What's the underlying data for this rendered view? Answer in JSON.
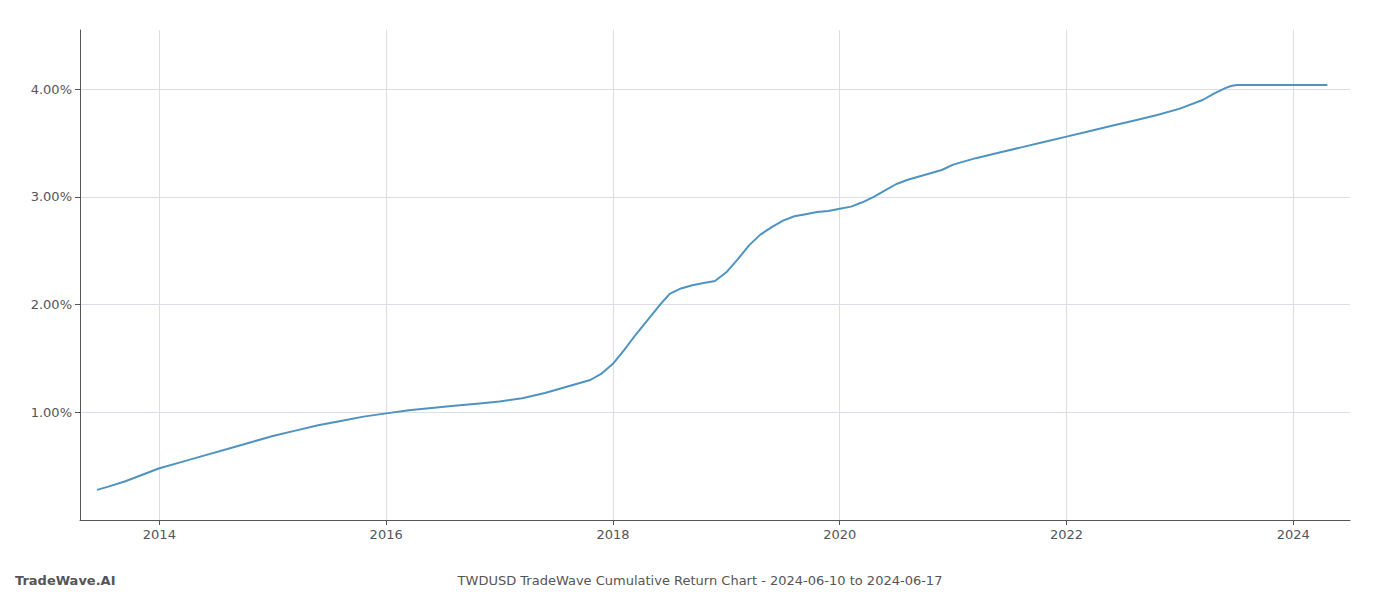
{
  "chart_data": {
    "type": "line",
    "title": "TWDUSD TradeWave Cumulative Return Chart - 2024-06-10 to 2024-06-17",
    "annotations": [
      "TradeWave.AI"
    ],
    "color": "#4f93c0",
    "x": [
      2013.45,
      2013.55,
      2013.7,
      2013.85,
      2014.0,
      2014.2,
      2014.4,
      2014.6,
      2014.8,
      2015.0,
      2015.2,
      2015.4,
      2015.6,
      2015.8,
      2016.0,
      2016.2,
      2016.4,
      2016.6,
      2016.8,
      2017.0,
      2017.2,
      2017.4,
      2017.5,
      2017.6,
      2017.7,
      2017.8,
      2017.9,
      2018.0,
      2018.1,
      2018.2,
      2018.3,
      2018.4,
      2018.5,
      2018.6,
      2018.7,
      2018.8,
      2018.9,
      2019.0,
      2019.1,
      2019.2,
      2019.3,
      2019.4,
      2019.5,
      2019.6,
      2019.7,
      2019.8,
      2019.9,
      2020.0,
      2020.1,
      2020.2,
      2020.3,
      2020.4,
      2020.5,
      2020.6,
      2020.7,
      2020.8,
      2020.9,
      2021.0,
      2021.2,
      2021.4,
      2021.6,
      2021.8,
      2022.0,
      2022.2,
      2022.4,
      2022.6,
      2022.8,
      2023.0,
      2023.2,
      2023.3,
      2023.4,
      2023.45,
      2023.5,
      2023.6,
      2023.7,
      2023.8,
      2023.9,
      2024.0,
      2024.1,
      2024.2,
      2024.3
    ],
    "values": [
      0.0028,
      0.0031,
      0.0036,
      0.0042,
      0.0048,
      0.0054,
      0.006,
      0.0066,
      0.0072,
      0.0078,
      0.0083,
      0.0088,
      0.0092,
      0.0096,
      0.0099,
      0.0102,
      0.0104,
      0.0106,
      0.0108,
      0.011,
      0.0113,
      0.0118,
      0.0121,
      0.0124,
      0.0127,
      0.013,
      0.0136,
      0.0145,
      0.0158,
      0.0172,
      0.0185,
      0.0198,
      0.021,
      0.0215,
      0.0218,
      0.022,
      0.0222,
      0.023,
      0.0242,
      0.0255,
      0.0265,
      0.0272,
      0.0278,
      0.0282,
      0.0284,
      0.0286,
      0.0287,
      0.0289,
      0.0291,
      0.0295,
      0.03,
      0.0306,
      0.0312,
      0.0316,
      0.0319,
      0.0322,
      0.0325,
      0.033,
      0.0336,
      0.0341,
      0.0346,
      0.0351,
      0.0356,
      0.0361,
      0.0366,
      0.0371,
      0.0376,
      0.0382,
      0.039,
      0.0396,
      0.0401,
      0.0403,
      0.0404,
      0.0404,
      0.0404,
      0.0404,
      0.0404,
      0.0404,
      0.0404,
      0.0404,
      0.0404
    ],
    "xlim": [
      2013.3,
      2024.5
    ],
    "ylim": [
      0.0,
      0.0455
    ],
    "xticks": [
      2014,
      2016,
      2018,
      2020,
      2022,
      2024
    ],
    "yticks": [
      {
        "value": 0.01,
        "label": "1.00%"
      },
      {
        "value": 0.02,
        "label": "2.00%"
      },
      {
        "value": 0.03,
        "label": "3.00%"
      },
      {
        "value": 0.04,
        "label": "4.00%"
      }
    ],
    "grid": true
  }
}
